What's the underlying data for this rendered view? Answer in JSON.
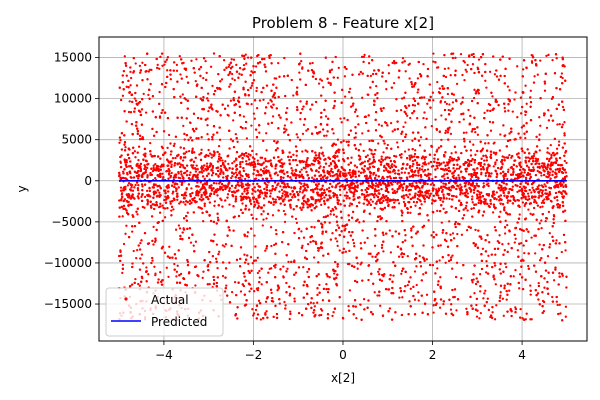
{
  "chart_data": {
    "type": "scatter",
    "title": "Problem 8 - Feature x[2]",
    "xlabel": "x[2]",
    "ylabel": "y",
    "xlim": [
      -5.45,
      5.45
    ],
    "ylim": [
      -19500,
      17500
    ],
    "x_ticks": [
      -4,
      -2,
      0,
      2,
      4
    ],
    "x_tick_labels": [
      "−4",
      "−2",
      "0",
      "2",
      "4"
    ],
    "y_ticks": [
      -15000,
      -10000,
      -5000,
      0,
      5000,
      10000,
      15000
    ],
    "y_tick_labels": [
      "−15000",
      "−10000",
      "−5000",
      "0",
      "5000",
      "10000",
      "15000"
    ],
    "grid": true,
    "legend_position": "lower-left",
    "series": [
      {
        "name": "Actual",
        "kind": "scatter",
        "color": "#ff0000",
        "x_range": [
          -5,
          5
        ],
        "y_range": [
          -17000,
          15500
        ],
        "distribution": "dense uniform-x, heavy concentration near y = 0",
        "point_count_approx": 20000
      },
      {
        "name": "Predicted",
        "kind": "line",
        "color": "#0000ff",
        "x": [
          -5,
          5
        ],
        "y": [
          0,
          0
        ]
      }
    ]
  }
}
